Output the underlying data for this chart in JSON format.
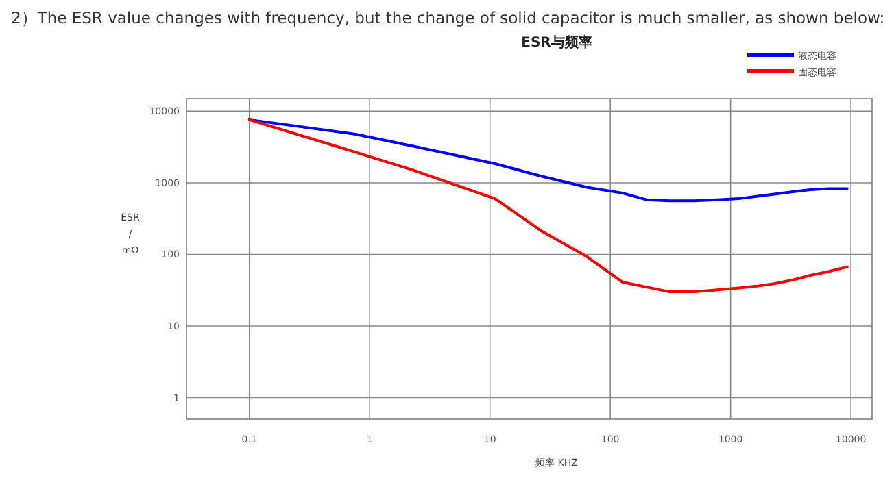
{
  "chart_data": {
    "type": "line",
    "title": "ESR与频率",
    "annotations": [
      "2）The ESR value changes with frequency, but the change of solid capacitor is much smaller, as shown below:"
    ],
    "xlabel": "频率 KHZ",
    "ylabel": "ESR / mΩ",
    "log": "xy",
    "grid": true,
    "legend": "top right",
    "xlim": [
      0.03,
      15000
    ],
    "ylim": [
      0.5,
      15000
    ],
    "xticks": [
      0.1,
      1,
      10,
      100,
      1000,
      10000
    ],
    "yticks": [
      1,
      10,
      100,
      1000,
      10000
    ],
    "series": [
      {
        "name": "液态电容",
        "color": "#0000ff",
        "x": [
          0.1,
          0.75,
          2.2,
          11,
          27,
          64,
          126,
          200,
          310,
          500,
          780,
          1170,
          1640,
          2300,
          3300,
          4600,
          6600,
          9300
        ],
        "values": [
          7600,
          4800,
          3300,
          1850,
          1230,
          865,
          720,
          580,
          560,
          560,
          580,
          600,
          645,
          695,
          750,
          800,
          830,
          830
        ]
      },
      {
        "name": "固态电容",
        "color": "#ff0000",
        "x": [
          0.1,
          0.75,
          2.2,
          11,
          27,
          64,
          126,
          200,
          310,
          500,
          780,
          1170,
          1640,
          2300,
          3300,
          4600,
          6600,
          9300
        ],
        "values": [
          7600,
          2700,
          1540,
          600,
          210,
          93,
          41,
          35,
          30,
          30,
          32,
          34,
          36,
          39,
          44,
          51,
          58,
          67
        ]
      }
    ]
  }
}
